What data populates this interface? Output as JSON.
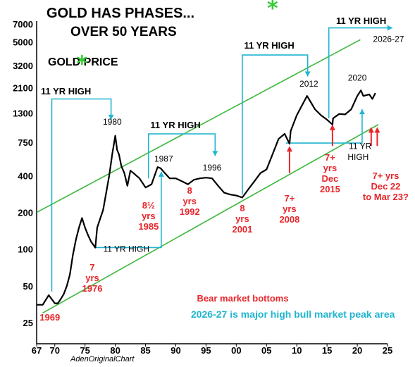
{
  "chart_data": {
    "type": "line",
    "title": "GOLD HAS PHASES...",
    "subtitle": "OVER 50 YEARS",
    "series_label": "GOLD PRICE",
    "source": "AdenOriginalChart",
    "y_scale": "log",
    "ylim": [
      25,
      7000
    ],
    "xlim": [
      1967,
      2025
    ],
    "y_ticks": [
      "7000",
      "5000",
      "3200",
      "2100",
      "1300",
      "750",
      "400",
      "200",
      "100",
      "50",
      "25"
    ],
    "x_ticks": [
      "67",
      "70",
      "75",
      "80",
      "85",
      "90",
      "95",
      "00",
      "05",
      "10",
      "15",
      "20",
      "25"
    ],
    "series": [
      {
        "x": [
          1967,
          1968,
          1969,
          1970,
          1970.5,
          1971,
          1971.5,
          1972,
          1972.5,
          1973,
          1973.5,
          1974,
          1974.5,
          1975,
          1975.5,
          1976,
          1976.7,
          1977,
          1978,
          1979,
          1979.5,
          1980,
          1980.3,
          1980.6,
          1981,
          1981.5,
          1982,
          1982.5,
          1983,
          1984,
          1985,
          1986,
          1987,
          1987.5,
          1988,
          1989,
          1990,
          1991,
          1992,
          1993,
          1994,
          1995,
          1996,
          1997,
          1998,
          1999,
          2000,
          2001,
          2002,
          2003,
          2004,
          2005,
          2006,
          2007,
          2008,
          2008.8,
          2009,
          2010,
          2011,
          2011.7,
          2012,
          2013,
          2014,
          2015,
          2015.9,
          2016,
          2017,
          2018,
          2019,
          2020,
          2020.6,
          2021,
          2022,
          2022.5,
          2023
        ],
        "values": [
          35,
          35,
          42,
          36,
          36,
          39,
          43,
          50,
          62,
          90,
          120,
          150,
          180,
          150,
          130,
          115,
          103,
          150,
          210,
          400,
          600,
          850,
          650,
          600,
          480,
          420,
          330,
          440,
          420,
          380,
          320,
          340,
          470,
          460,
          430,
          380,
          380,
          360,
          340,
          370,
          380,
          385,
          380,
          330,
          290,
          280,
          275,
          265,
          310,
          360,
          420,
          450,
          600,
          800,
          880,
          730,
          930,
          1250,
          1550,
          1800,
          1700,
          1400,
          1250,
          1150,
          1050,
          1180,
          1280,
          1270,
          1400,
          1800,
          2000,
          1800,
          1850,
          1700,
          1900
        ]
      }
    ],
    "annotations": {
      "peaks": [
        "1980",
        "1987",
        "1996",
        "2012",
        "2020"
      ],
      "projection_label": "2026-27",
      "eleven_yr_high": "11 YR HIGH",
      "eleven_yr_high_black": "11 YR HIGH",
      "eleven_yr_high_low_left": "11 YR",
      "eleven_yr_high_low_right": "HIGH",
      "star": "*",
      "bottoms": [
        {
          "lines": [
            "1969"
          ]
        },
        {
          "lines": [
            "7",
            "yrs",
            "1976"
          ]
        },
        {
          "lines": [
            "8½",
            "yrs",
            "1985"
          ]
        },
        {
          "lines": [
            "8",
            "yrs",
            "1992"
          ]
        },
        {
          "lines": [
            "8",
            "yrs",
            "2001"
          ]
        },
        {
          "lines": [
            "7+",
            "yrs",
            "2008"
          ]
        },
        {
          "lines": [
            "7+",
            "yrs",
            "Dec",
            "2015"
          ]
        },
        {
          "lines": [
            "7+ yrs",
            "Dec 22",
            "to Mar 23?"
          ]
        }
      ],
      "bear_market_bottoms": "Bear market bottoms",
      "footer_note": "2026-27 is major high bull market peak area"
    },
    "colors": {
      "price": "#000000",
      "channel": "#3cb83c",
      "cyan": "#1fb5d0",
      "red": "#e8262b",
      "star": "#33cc33"
    }
  }
}
